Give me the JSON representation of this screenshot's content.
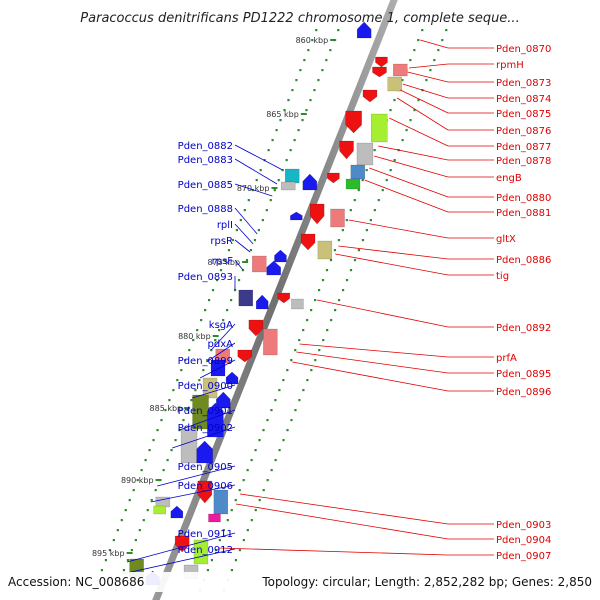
{
  "title": "Paracoccus denitrificans PD1222 chromosome 1, complete seque...",
  "footer": {
    "accession": "Accession: NC_008686",
    "info": "Topology: circular; Length: 2,852,282 bp; Genes: 2,850"
  },
  "kbp_ticks": [
    "860 kbp",
    "865 kbp",
    "870 kbp",
    "875 kbp",
    "880 kbp",
    "885 kbp",
    "890 kbp",
    "895 kbp"
  ],
  "forward_labels": [
    "Pden_0870",
    "rpmH",
    "Pden_0873",
    "Pden_0874",
    "Pden_0875",
    "Pden_0876",
    "Pden_0877",
    "Pden_0878",
    "engB",
    "Pden_0880",
    "Pden_0881",
    "gltX",
    "Pden_0886",
    "tig",
    "Pden_0892",
    "prfA",
    "Pden_0895",
    "Pden_0896",
    "Pden_0903",
    "Pden_0904",
    "Pden_0907"
  ],
  "reverse_labels": [
    "Pden_0882",
    "Pden_0883",
    "Pden_0885",
    "Pden_0888",
    "rplI",
    "rpsR",
    "rpsF",
    "Pden_0893",
    "ksgA",
    "pdxA",
    "Pden_0899",
    "Pden_0900",
    "Pden_0901",
    "Pden_0902",
    "Pden_0905",
    "Pden_0906",
    "Pden_0911",
    "Pden_0912"
  ],
  "colors": {
    "forward_label": "#e00000",
    "reverse_label": "#0000c8",
    "backbone": "#808080",
    "gene_red": "#ee1111",
    "gene_blue": "#1a1aee",
    "gene_pink": "#ee7b7b",
    "gene_khaki": "#c9c07a",
    "gene_olive": "#6f8a1e",
    "gene_lime": "#a6ee30",
    "gene_steel": "#4d8ac7",
    "gene_teal": "#17b6c4",
    "gene_grey": "#bdbdbd",
    "gene_navy": "#3d3a8c",
    "gene_green": "#2bbb2b",
    "gene_magenta": "#ee1aa0",
    "tick_green": "#2e8b2e"
  }
}
